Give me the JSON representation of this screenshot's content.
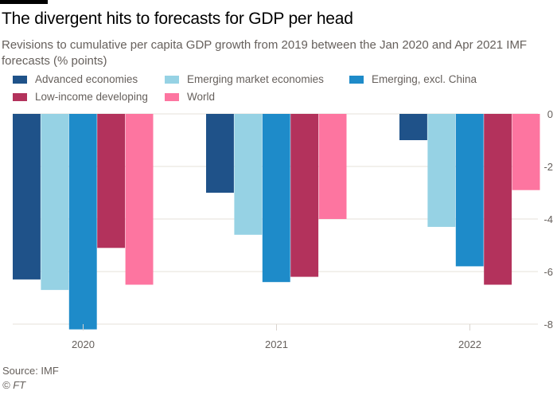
{
  "header": {
    "title": "The divergent hits to forecasts for GDP per head",
    "subtitle": "Revisions to cumulative per capita GDP growth from 2019 between the Jan 2020 and Apr 2021 IMF forecasts (% points)"
  },
  "footer": {
    "source": "Source: IMF",
    "copyright": "© FT"
  },
  "chart_data": {
    "type": "bar",
    "title": "The divergent hits to forecasts for GDP per head",
    "subtitle": "Revisions to cumulative per capita GDP growth from 2019 between the Jan 2020 and Apr 2021 IMF forecasts (% points)",
    "xlabel": "",
    "ylabel": "",
    "categories": [
      "2020",
      "2021",
      "2022"
    ],
    "ylim": [
      -8,
      0
    ],
    "yticks": [
      0,
      -2,
      -4,
      -6,
      -8
    ],
    "ytick_labels": [
      "0",
      "-2",
      "-4",
      "-6",
      "-8"
    ],
    "grid": true,
    "y_axis_side": "right",
    "legend_position": "top",
    "series": [
      {
        "name": "Advanced economies",
        "color": "#1f5289",
        "values": [
          -6.3,
          -3.0,
          -1.0
        ]
      },
      {
        "name": "Emerging market economies",
        "color": "#96d2e4",
        "values": [
          -6.7,
          -4.6,
          -4.3
        ]
      },
      {
        "name": "Emerging, excl. China",
        "color": "#1e8bc9",
        "values": [
          -8.2,
          -6.4,
          -5.8
        ]
      },
      {
        "name": "Low-income developing",
        "color": "#b3325c",
        "values": [
          -5.1,
          -6.2,
          -6.5
        ]
      },
      {
        "name": "World",
        "color": "#fd75a0",
        "values": [
          -6.5,
          -4.0,
          -2.9
        ]
      }
    ]
  }
}
